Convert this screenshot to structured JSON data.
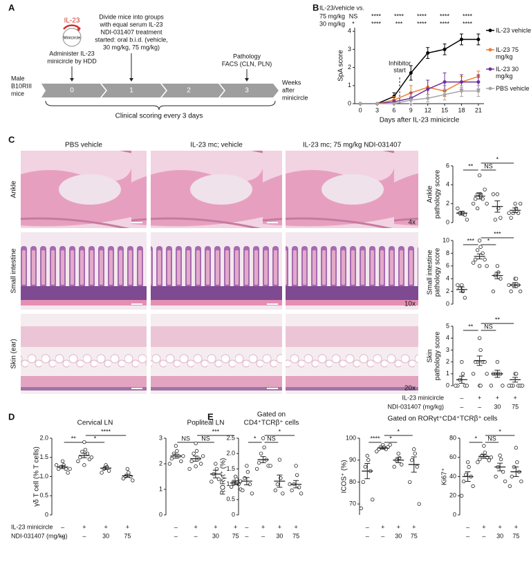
{
  "panel_labels": {
    "A": "A",
    "B": "B",
    "C": "C",
    "D": "D",
    "E": "E"
  },
  "diagram": {
    "il23": "IL-23",
    "minicircle": "Minicircle",
    "administer": [
      "Administer IL-23",
      "minicircle by HDD"
    ],
    "divide": [
      "Divide mice into groups",
      "with equal serum IL-23",
      "NDI-031407 treatment",
      "started: oral b.i.d. (vehicle,",
      "30 mg/kg, 75 mg/kg)"
    ],
    "pathology": [
      "Pathology",
      "FACS (CLN, PLN)"
    ],
    "mice": [
      "Male",
      "B10RIII",
      "mice"
    ],
    "weeks": [
      "Weeks",
      "after",
      "minicircle"
    ],
    "timeline": [
      "0",
      "1",
      "2",
      "3"
    ],
    "scoring": "Clinical scoring every 3 days"
  },
  "histology": {
    "columns": [
      "PBS vehicle",
      "IL-23 mc; vehicle",
      "IL-23 mc; 75 mg/kg NDI-031407"
    ],
    "rows": [
      "Ankle",
      "Small intestine",
      "Skin (ear)"
    ],
    "magnifications": [
      "4x",
      "10x",
      "20x"
    ]
  },
  "group_labels_C": [
    "IL-23 minicircle",
    "NDI-031407 (mg/kg)"
  ],
  "group_labels_D": [
    "IL-23 minicircle",
    "NDI-031407 (mg/kg)"
  ],
  "section_E_title": "Gated on RORγt⁺CD4⁺TCRβ⁺ cells",
  "chart_data": [
    {
      "type": "line",
      "x": [
        0,
        3,
        6,
        9,
        12,
        15,
        18,
        21
      ],
      "xlim": [
        -1,
        22
      ],
      "xticks": [
        0,
        3,
        6,
        9,
        12,
        15,
        18,
        21
      ],
      "ylim": [
        0,
        4.2
      ],
      "yticks": [
        0,
        1,
        2,
        3,
        4
      ],
      "xlabel": "Days after IL-23 minicircle",
      "ylabel": "SpA score",
      "marker_x": 7,
      "marker_label": [
        "Inhibitor",
        "start"
      ],
      "legend": "right",
      "comparison_header": "IL-23/vehicle vs.",
      "comparisons": [
        {
          "label": "75 mg/kg",
          "marks": [
            "NS",
            "****",
            "****",
            "****",
            "****",
            "****"
          ]
        },
        {
          "label": "30 mg/kg",
          "marks": [
            "*",
            "****",
            "***",
            "****",
            "****",
            "****"
          ]
        }
      ],
      "series": [
        {
          "name": "IL-23 vehicle",
          "color": "#000000",
          "values": [
            0,
            0,
            0.4,
            1.7,
            2.8,
            3.0,
            3.55,
            3.55
          ],
          "errors": [
            0,
            0,
            0.2,
            0.4,
            0.3,
            0.3,
            0.3,
            0.3
          ]
        },
        {
          "name": "IL-23 75 mg/kg",
          "color": "#f07c28",
          "values": [
            0,
            0,
            0.2,
            0.6,
            0.9,
            0.7,
            1.2,
            1.5
          ],
          "errors": [
            0,
            0,
            0.2,
            0.4,
            0.4,
            0.3,
            0.3,
            0.3
          ]
        },
        {
          "name": "IL-23 30 mg/kg",
          "color": "#7030a0",
          "values": [
            0,
            0,
            0.1,
            0.3,
            0.8,
            1.2,
            1.2,
            1.2
          ],
          "errors": [
            0,
            0,
            0.1,
            0.3,
            0.5,
            0.5,
            0.4,
            0.4
          ]
        },
        {
          "name": "PBS vehicle",
          "color": "#a6a6a6",
          "values": [
            0,
            0,
            0,
            0.2,
            0.3,
            0.5,
            0.7,
            0.7
          ],
          "errors": [
            0,
            0,
            0,
            0.2,
            0.2,
            0.3,
            0.3,
            0.3
          ]
        }
      ]
    },
    {
      "type": "dot",
      "ylabel": [
        "Ankle",
        "pathology score"
      ],
      "ylim": [
        0,
        6
      ],
      "yticks": [
        0,
        2,
        4,
        6
      ],
      "groups": [
        [
          1,
          1,
          1,
          0.8,
          1.5,
          0.3
        ],
        [
          5,
          3,
          3,
          2.5,
          2.5,
          3.5,
          2,
          2,
          3,
          2.8,
          1.5
        ],
        [
          3,
          1.5,
          0.3,
          0.5,
          3
        ],
        [
          2,
          1.5,
          1,
          1,
          0.5,
          2,
          1
        ]
      ],
      "means": [
        1.0,
        2.8,
        1.7,
        1.3
      ],
      "sems": [
        0.2,
        0.3,
        0.6,
        0.25
      ],
      "significance": [
        "**",
        "NS",
        "*"
      ]
    },
    {
      "type": "dot",
      "ylabel": [
        "Small intestine",
        "pathology score"
      ],
      "ylim": [
        0,
        10
      ],
      "yticks": [
        0,
        2,
        4,
        6,
        8,
        10
      ],
      "groups": [
        [
          3,
          2,
          2.5,
          1,
          3
        ],
        [
          10,
          9,
          8.5,
          8,
          7,
          7,
          6.5,
          6,
          6
        ],
        [
          6,
          5,
          4.5,
          4,
          2
        ],
        [
          4,
          4,
          3,
          3,
          2,
          2,
          3
        ]
      ],
      "means": [
        2.3,
        7.5,
        4.5,
        3.0
      ],
      "sems": [
        0.4,
        0.4,
        0.5,
        0.4
      ],
      "significance": [
        "***",
        "*",
        "***"
      ]
    },
    {
      "type": "dot",
      "ylabel": [
        "Skin",
        "pathology score"
      ],
      "ylim": [
        0,
        5
      ],
      "yticks": [
        0,
        1,
        2,
        3,
        4,
        5
      ],
      "groups": [
        [
          2,
          1,
          0.5,
          0,
          0,
          0,
          0
        ],
        [
          4,
          3,
          2,
          2,
          2,
          2,
          1,
          1,
          0,
          0
        ],
        [
          2,
          1,
          1,
          1,
          1,
          0,
          0
        ],
        [
          1,
          1,
          0,
          0,
          0,
          0,
          0,
          0
        ]
      ],
      "means": [
        0.5,
        2.1,
        1.0,
        0.5
      ],
      "sems": [
        0.3,
        0.4,
        0.3,
        0.2
      ],
      "significance": [
        "**",
        "NS",
        "**"
      ],
      "category_rows": [
        [
          "–",
          "+",
          "+",
          "+"
        ],
        [
          "–",
          "–",
          "30",
          "75"
        ]
      ]
    },
    {
      "type": "dot",
      "title": [
        "Cervical LN"
      ],
      "ylabel": [
        "γδ T cell (% T cells)"
      ],
      "ylim": [
        0,
        2
      ],
      "yticks": [
        0,
        0.5,
        {
          "value": 1,
          "label": "1.0"
        },
        1.5,
        {
          "value": 2,
          "label": "2.0"
        }
      ],
      "groups": [
        [
          1.4,
          1.3,
          1.25,
          1.2,
          1.2,
          1.1,
          1.3,
          1.2
        ],
        [
          1.9,
          1.7,
          1.65,
          1.6,
          1.5,
          1.45,
          1.4,
          1.5,
          1.3
        ],
        [
          1.3,
          1.25,
          1.2,
          1.15,
          1.1
        ],
        [
          1.2,
          1.1,
          1.0,
          1.0,
          0.95,
          0.9
        ]
      ],
      "means": [
        1.25,
        1.55,
        1.22,
        1.02
      ],
      "sems": [
        0.04,
        0.06,
        0.04,
        0.04
      ],
      "significance": [
        "**",
        "*",
        "****"
      ],
      "category_rows": [
        [
          "–",
          "+",
          "+",
          "+"
        ],
        [
          "–",
          "–",
          "30",
          "75"
        ]
      ]
    },
    {
      "type": "dot",
      "title": [
        "Popliteal LN"
      ],
      "ylim": [
        0,
        3
      ],
      "yticks": [
        0,
        1,
        2,
        3
      ],
      "groups": [
        [
          2.7,
          2.5,
          2.4,
          2.3,
          2.2,
          2.1,
          2.0,
          2.3
        ],
        [
          2.8,
          2.5,
          2.4,
          2.2,
          2.1,
          2.0,
          1.8,
          2.3,
          1.9
        ],
        [
          2.0,
          1.8,
          1.6,
          1.4,
          1.3
        ],
        [
          1.5,
          1.4,
          1.3,
          1.2,
          1.1,
          1.0
        ]
      ],
      "means": [
        2.3,
        2.2,
        1.6,
        1.25
      ],
      "sems": [
        0.08,
        0.1,
        0.15,
        0.07
      ],
      "significance": [
        "NS",
        "NS",
        "***"
      ],
      "category_rows": [
        [
          "–",
          "+",
          "+",
          "+"
        ],
        [
          "–",
          "–",
          "30",
          "75"
        ]
      ]
    },
    {
      "type": "dot",
      "title": [
        "Gated on",
        "CD4⁺TCRβ⁺ cells"
      ],
      "ylabel": [
        "RORγt⁺ (%)"
      ],
      "ylim": [
        0,
        2.5
      ],
      "yticks": [
        0,
        0.5,
        {
          "value": 1,
          "label": "1.0"
        },
        1.5,
        {
          "value": 2,
          "label": "2.0"
        },
        2.5
      ],
      "groups": [
        [
          1.6,
          1.4,
          1.2,
          1.0,
          0.8,
          0.7,
          1.1
        ],
        [
          2.5,
          2.2,
          2.0,
          1.8,
          1.7,
          1.6,
          1.5,
          1.6
        ],
        [
          1.8,
          1.2,
          1.0,
          0.7,
          0.8
        ],
        [
          1.6,
          1.3,
          1.0,
          0.9,
          0.8,
          0.7,
          1.0
        ]
      ],
      "means": [
        1.1,
        1.8,
        1.1,
        1.0
      ],
      "sems": [
        0.12,
        0.1,
        0.2,
        0.12
      ],
      "significance": [
        "*",
        "NS",
        "*"
      ],
      "category_rows": [
        [
          "–",
          "+",
          "+",
          "+"
        ],
        [
          "–",
          "–",
          "30",
          "75"
        ]
      ]
    },
    {
      "type": "dot",
      "ylabel": [
        "ICOS⁺ (%)"
      ],
      "ylim": [
        65,
        100
      ],
      "yticks": [
        70,
        80,
        90,
        100
      ],
      "groups": [
        [
          92,
          90,
          87,
          85,
          80,
          72,
          68
        ],
        [
          97,
          96,
          96,
          95,
          95,
          96,
          94,
          97
        ],
        [
          93,
          91,
          90,
          88,
          87
        ],
        [
          95,
          93,
          90,
          87,
          80,
          70
        ]
      ],
      "means": [
        85,
        95.5,
        90,
        88
      ],
      "sems": [
        3.5,
        0.5,
        1.2,
        3.5
      ],
      "significance": [
        "****",
        "*",
        "*"
      ],
      "category_rows": [
        [
          "–",
          "+",
          "+",
          "+"
        ],
        [
          "–",
          "–",
          "30",
          "75"
        ]
      ]
    },
    {
      "type": "dot",
      "ylabel": [
        "Ki67⁺"
      ],
      "ylim": [
        0,
        80
      ],
      "yticks": [
        0,
        20,
        40,
        60,
        80
      ],
      "groups": [
        [
          55,
          50,
          42,
          40,
          35,
          30,
          20
        ],
        [
          72,
          65,
          62,
          60,
          58,
          57,
          55,
          60
        ],
        [
          62,
          58,
          50,
          45,
          40,
          35
        ],
        [
          70,
          55,
          50,
          45,
          40,
          35,
          30
        ]
      ],
      "means": [
        40,
        61,
        50,
        45
      ],
      "sems": [
        5,
        2,
        4,
        5
      ],
      "significance": [
        "*",
        "NS",
        "*"
      ],
      "category_rows": [
        [
          "–",
          "+",
          "+",
          "+"
        ],
        [
          "–",
          "–",
          "30",
          "75"
        ]
      ]
    }
  ]
}
